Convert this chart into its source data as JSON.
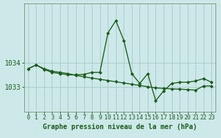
{
  "title": "Graphe pression niveau de la mer (hPa)",
  "bg_color": "#cce8e8",
  "grid_color": "#aacccc",
  "line_color": "#1a5c1a",
  "marker_color": "#1a5c1a",
  "xlim": [
    -0.5,
    23.5
  ],
  "ylim": [
    1032.0,
    1036.4
  ],
  "yticks": [
    1033,
    1034
  ],
  "xticks": [
    0,
    1,
    2,
    3,
    4,
    5,
    6,
    7,
    8,
    9,
    10,
    11,
    12,
    13,
    14,
    15,
    16,
    17,
    18,
    19,
    20,
    21,
    22,
    23
  ],
  "series1_x": [
    0,
    1,
    2,
    3,
    4,
    5,
    6,
    7,
    8,
    9,
    10,
    11,
    12,
    13,
    14,
    15,
    16,
    17,
    18,
    19,
    20,
    21,
    22,
    23
  ],
  "series1_y": [
    1033.75,
    1033.9,
    1033.75,
    1033.65,
    1033.6,
    1033.55,
    1033.48,
    1033.42,
    1033.37,
    1033.32,
    1033.27,
    1033.22,
    1033.17,
    1033.12,
    1033.07,
    1033.02,
    1032.97,
    1032.95,
    1032.93,
    1032.92,
    1032.9,
    1032.88,
    1033.05,
    1033.05
  ],
  "series2_x": [
    0,
    1,
    2,
    3,
    4,
    5,
    6,
    7,
    8,
    9,
    10,
    11,
    12,
    13,
    14,
    15,
    16,
    17,
    18,
    19,
    20,
    21,
    22,
    23
  ],
  "series2_y": [
    1033.75,
    1033.9,
    1033.72,
    1033.6,
    1033.55,
    1033.5,
    1033.5,
    1033.52,
    1033.6,
    1033.6,
    1035.2,
    1035.7,
    1034.9,
    1033.55,
    1033.15,
    1033.55,
    1032.45,
    1032.85,
    1033.15,
    1033.2,
    1033.2,
    1033.25,
    1033.35,
    1033.2
  ],
  "tick_fontsize": 6,
  "xlabel_fontsize": 7,
  "ytick_fontsize": 7
}
